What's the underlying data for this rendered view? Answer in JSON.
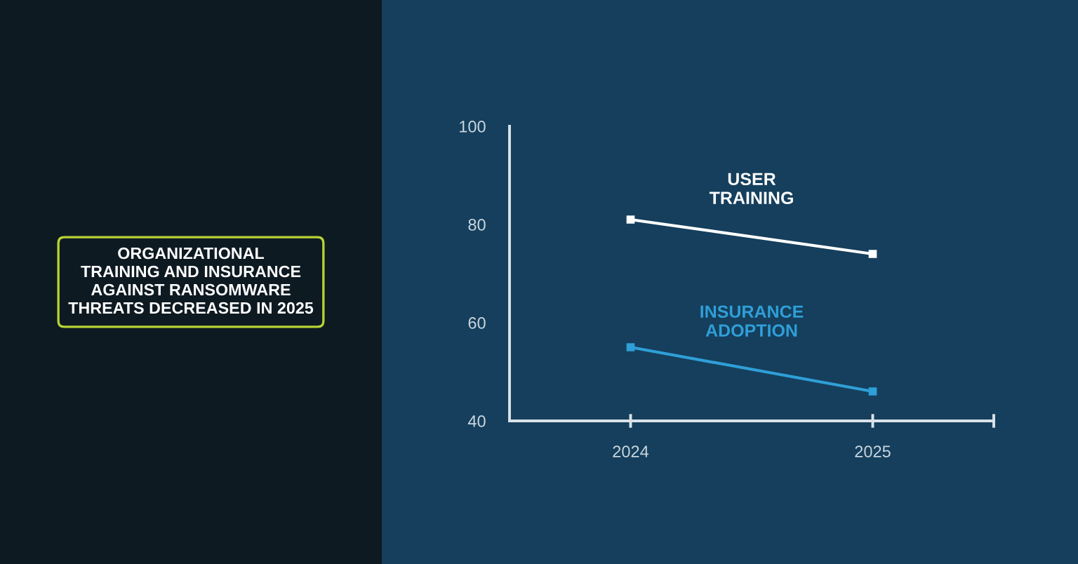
{
  "chart_data": {
    "type": "line",
    "title": "ORGANIZATIONAL\nTRAINING AND INSURANCE\nAGAINST RANSOMWARE\nTHREATS DECREASED IN 2025",
    "x": [
      2024,
      2025
    ],
    "series": [
      {
        "name": "USER\nTRAINING",
        "color": "#ffffff",
        "values": [
          81,
          74
        ]
      },
      {
        "name": "INSURANCE\nADOPTION",
        "color": "#2f9fd8",
        "values": [
          55,
          46
        ]
      }
    ],
    "xlim": [
      2023.5,
      2025.5
    ],
    "xticks": [
      2024,
      2025,
      {
        "value": 2025.5,
        "label": null
      }
    ],
    "ylim": [
      40,
      100
    ],
    "yticks": [
      40,
      60,
      80,
      100
    ],
    "marker": "square",
    "line_style": "solid",
    "grid": false,
    "legend": false
  }
}
